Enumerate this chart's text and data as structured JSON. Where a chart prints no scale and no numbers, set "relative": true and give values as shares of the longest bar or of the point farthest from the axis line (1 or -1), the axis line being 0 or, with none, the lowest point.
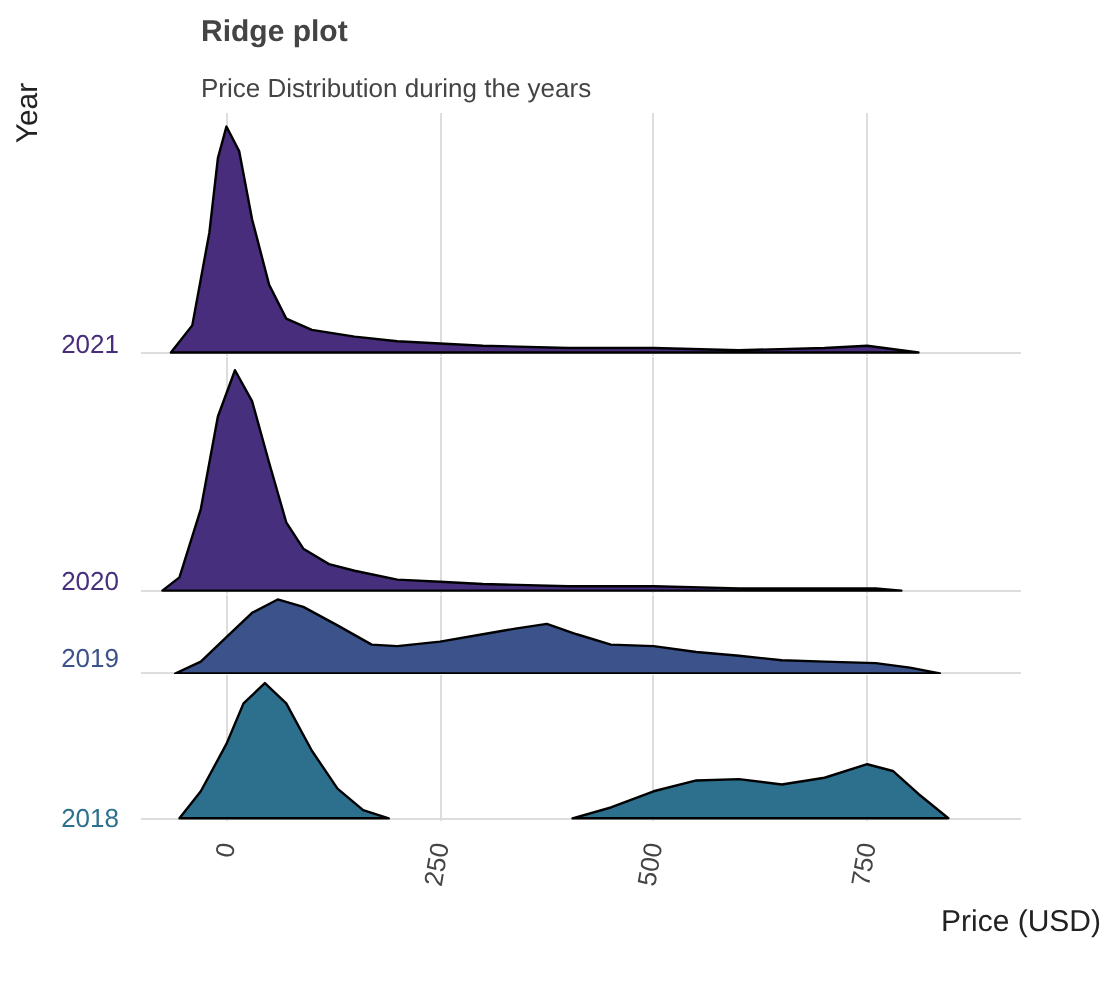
{
  "chart_data": [
    {
      "type": "area",
      "title": "Ridge plot",
      "subtitle": "Price Distribution during the years",
      "ylabel": "Year",
      "relative": true,
      "xlim": [
        -100,
        930
      ],
      "xticks": [
        0,
        250,
        500,
        750
      ],
      "tick_labels": "y",
      "grid": true,
      "series": [
        {
          "name": "2021",
          "color": "#472d7b",
          "x": [
            -65,
            -40,
            -20,
            -10,
            0,
            15,
            30,
            50,
            70,
            100,
            150,
            200,
            250,
            300,
            400,
            500,
            600,
            700,
            750,
            790,
            810
          ],
          "values": [
            0,
            0.12,
            0.53,
            0.86,
            1,
            0.89,
            0.59,
            0.3,
            0.15,
            0.1,
            0.07,
            0.05,
            0.04,
            0.03,
            0.02,
            0.02,
            0.01,
            0.02,
            0.03,
            0.01,
            0
          ]
        }
      ]
    },
    {
      "type": "area",
      "relative": true,
      "xlim": [
        -100,
        930
      ],
      "xticks": [
        0,
        250,
        500,
        750
      ],
      "tick_labels": "y",
      "grid": true,
      "series": [
        {
          "name": "2020",
          "color": "#46307e",
          "x": [
            -75,
            -55,
            -30,
            -10,
            10,
            30,
            50,
            70,
            90,
            120,
            150,
            200,
            250,
            300,
            400,
            500,
            600,
            700,
            760,
            790
          ],
          "values": [
            0,
            0.06,
            0.37,
            0.79,
            1,
            0.86,
            0.58,
            0.31,
            0.19,
            0.12,
            0.09,
            0.05,
            0.04,
            0.03,
            0.02,
            0.02,
            0.01,
            0.01,
            0.01,
            0
          ]
        }
      ]
    },
    {
      "type": "area",
      "relative": true,
      "xlim": [
        -100,
        930
      ],
      "xticks": [
        0,
        250,
        500,
        750
      ],
      "tick_labels": "y",
      "grid": true,
      "series": [
        {
          "name": "2019",
          "color": "#3b528b",
          "x": [
            -60,
            -30,
            0,
            30,
            60,
            90,
            130,
            170,
            200,
            250,
            300,
            340,
            375,
            410,
            450,
            500,
            550,
            600,
            650,
            700,
            760,
            800,
            835
          ],
          "values": [
            0,
            0.16,
            0.49,
            0.82,
            1,
            0.9,
            0.65,
            0.39,
            0.37,
            0.43,
            0.53,
            0.61,
            0.67,
            0.53,
            0.39,
            0.37,
            0.29,
            0.24,
            0.18,
            0.16,
            0.14,
            0.08,
            0
          ]
        }
      ]
    },
    {
      "type": "area",
      "xlabel": "Price (USD)",
      "relative": true,
      "xlim": [
        -100,
        930
      ],
      "xticks": [
        0,
        250,
        500,
        750
      ],
      "grid": true,
      "series": [
        {
          "name": "2018",
          "color": "#2d708e",
          "x": [
            -55,
            -30,
            0,
            20,
            45,
            70,
            100,
            130,
            160,
            190,
            300,
            405,
            450,
            500,
            550,
            600,
            650,
            700,
            750,
            780,
            810,
            845
          ],
          "values": [
            0,
            0.2,
            0.55,
            0.85,
            1,
            0.85,
            0.5,
            0.22,
            0.06,
            0,
            null,
            0,
            0.08,
            0.2,
            0.28,
            0.29,
            0.25,
            0.3,
            0.4,
            0.35,
            0.18,
            0
          ]
        }
      ]
    }
  ]
}
